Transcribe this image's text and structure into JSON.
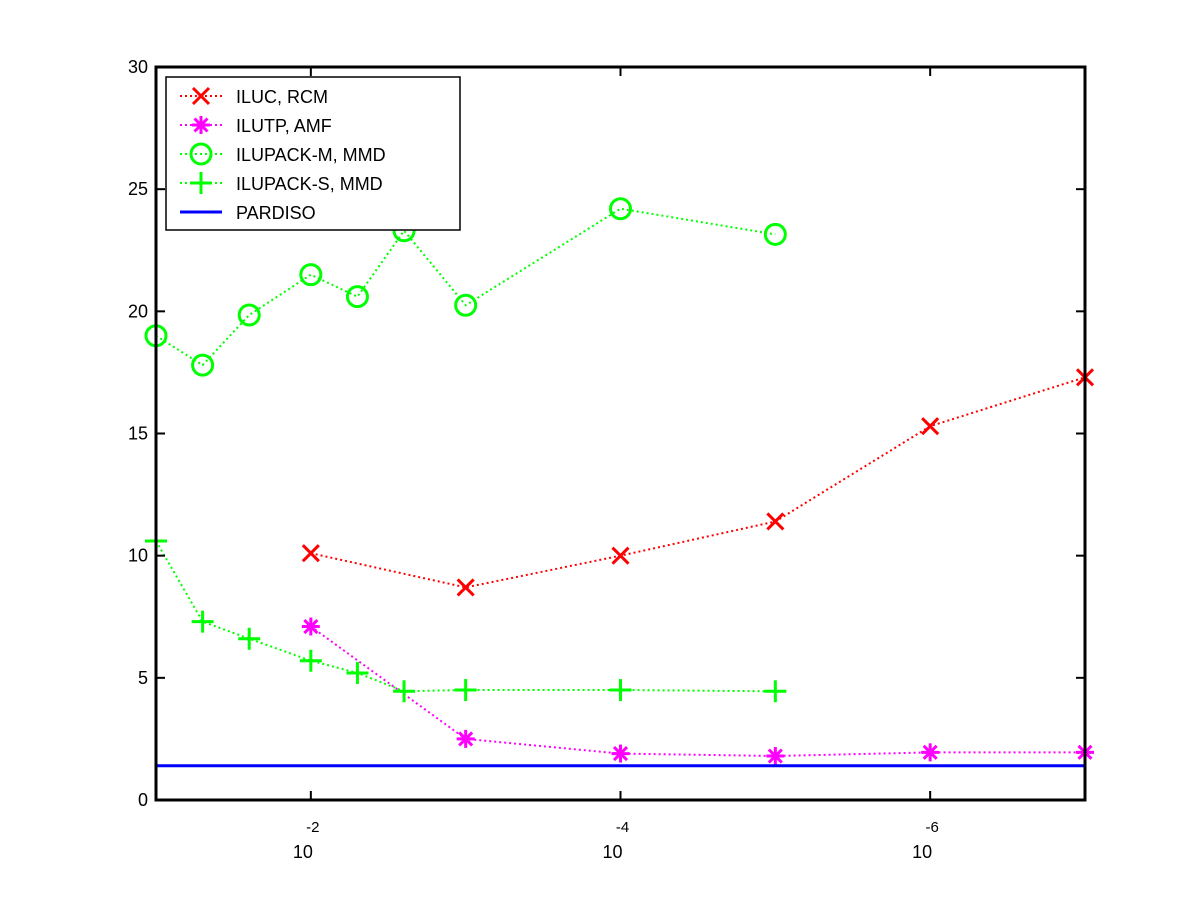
{
  "chart_data": {
    "type": "line",
    "title": "",
    "xlabel": "",
    "ylabel": "",
    "x_scale": "log",
    "x_direction": "decreasing",
    "xlim": [
      0.1,
      1e-07
    ],
    "ylim": [
      0,
      30
    ],
    "y_ticks": [
      0,
      5,
      10,
      15,
      20,
      25,
      30
    ],
    "x_ticks": [
      {
        "value": 0.01,
        "base": "10",
        "exponent": "-2"
      },
      {
        "value": 0.0001,
        "base": "10",
        "exponent": "-4"
      },
      {
        "value": 1e-06,
        "base": "10",
        "exponent": "-6"
      }
    ],
    "grid": false,
    "legend_position": "top-left",
    "series": [
      {
        "name": "ILUC, RCM",
        "color": "#ff0000",
        "marker": "x",
        "line_style": "dotted",
        "x": [
          0.01,
          0.001,
          0.0001,
          1e-05,
          1e-06,
          1e-07
        ],
        "y": [
          10.1,
          8.7,
          10.0,
          11.4,
          15.3,
          17.3
        ]
      },
      {
        "name": "ILUTP, AMF",
        "color": "#ff00ff",
        "marker": "asterisk",
        "line_style": "dotted",
        "x": [
          0.01,
          0.001,
          0.0001,
          1e-05,
          1e-06,
          1e-07
        ],
        "y": [
          7.1,
          2.5,
          1.9,
          1.8,
          1.95,
          1.95
        ]
      },
      {
        "name": "ILUPACK-M, MMD",
        "color": "#00ff00",
        "marker": "circle",
        "line_style": "dotted",
        "x": [
          0.1,
          0.05,
          0.025,
          0.01,
          0.005,
          0.0025,
          0.001,
          0.0001,
          1e-05
        ],
        "y": [
          19.0,
          17.8,
          19.85,
          21.5,
          20.6,
          23.3,
          20.25,
          24.2,
          23.15
        ]
      },
      {
        "name": "ILUPACK-S, MMD",
        "color": "#00ff00",
        "marker": "plus",
        "line_style": "dotted",
        "x": [
          0.1,
          0.05,
          0.025,
          0.01,
          0.005,
          0.0025,
          0.001,
          0.0001,
          1e-05
        ],
        "y": [
          10.6,
          7.3,
          6.6,
          5.7,
          5.2,
          4.45,
          4.5,
          4.5,
          4.45
        ]
      },
      {
        "name": "PARDISO",
        "color": "#0000ff",
        "marker": "none",
        "line_style": "solid",
        "x": [
          0.1,
          1e-07
        ],
        "y": [
          1.4,
          1.4
        ]
      }
    ]
  }
}
